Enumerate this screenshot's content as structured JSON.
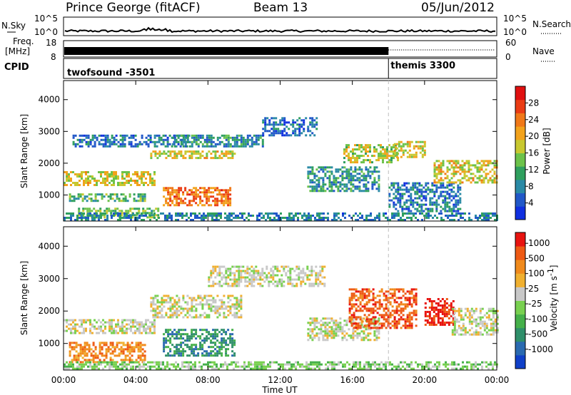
{
  "header": {
    "station": "Prince George (fitACF)",
    "beam": "Beam 13",
    "date": "05/Jun/2012"
  },
  "status_panels": {
    "nsky_label": "N.Sky",
    "nsky_ticks": [
      "10^5",
      "10^0"
    ],
    "nsearch_label": "N.Search",
    "nsearch_ticks": [
      "10^5",
      "10^0"
    ],
    "freq_label_line1": "Freq.",
    "freq_label_line2": "[MHz]",
    "freq_ticks": [
      "18",
      "8"
    ],
    "nave_label": "Nave",
    "nave_ticks": [
      "60",
      "0"
    ],
    "cpid_label": "CPID",
    "cpid_segments": [
      {
        "name": "twofsound",
        "id": "-3501",
        "start_hour": 0,
        "end_hour": 18
      },
      {
        "name": "themis",
        "id": "3300",
        "start_hour": 18,
        "end_hour": 24
      }
    ]
  },
  "x_axis": {
    "label": "Time UT",
    "ticks": [
      "00:00",
      "04:00",
      "08:00",
      "12:00",
      "16:00",
      "20:00",
      "00:00"
    ],
    "range_hours": [
      0,
      24
    ]
  },
  "chart_data": [
    {
      "type": "heatmap",
      "name": "power",
      "ylabel": "Slant Range [km]",
      "yticks": [
        "1000",
        "2000",
        "3000",
        "4000"
      ],
      "ylim": [
        180,
        4600
      ],
      "xlim_hours": [
        0,
        24
      ],
      "colorbar": {
        "label": "Power [dB]",
        "ticks": [
          "4",
          "8",
          "12",
          "16",
          "20",
          "24",
          "28"
        ],
        "range": [
          0,
          32
        ],
        "colors": [
          "#1030e0",
          "#2158c8",
          "#2a8aa6",
          "#2f9f5e",
          "#6cc24a",
          "#c8c830",
          "#f2a21c",
          "#f07818",
          "#ea3c14",
          "#e01010"
        ]
      },
      "regions": [
        {
          "t0": 0.0,
          "t1": 5.0,
          "r0": 1300,
          "r1": 1750,
          "level": 18
        },
        {
          "t0": 0.3,
          "t1": 4.5,
          "r0": 800,
          "r1": 1050,
          "level": 12
        },
        {
          "t0": 0.8,
          "t1": 5.2,
          "r0": 300,
          "r1": 600,
          "level": 14
        },
        {
          "t0": 0.5,
          "t1": 7.0,
          "r0": 2500,
          "r1": 2900,
          "level": 6
        },
        {
          "t0": 4.8,
          "t1": 9.5,
          "r0": 2150,
          "r1": 2400,
          "level": 18
        },
        {
          "t0": 5.5,
          "t1": 9.2,
          "r0": 650,
          "r1": 1250,
          "level": 25
        },
        {
          "t0": 6.0,
          "t1": 11.0,
          "r0": 2550,
          "r1": 2900,
          "level": 8
        },
        {
          "t0": 11.0,
          "t1": 14.0,
          "r0": 2900,
          "r1": 3450,
          "level": 5
        },
        {
          "t0": 13.5,
          "t1": 17.5,
          "r0": 1100,
          "r1": 1900,
          "level": 9
        },
        {
          "t0": 15.5,
          "t1": 18.5,
          "r0": 2000,
          "r1": 2600,
          "level": 17
        },
        {
          "t0": 18.0,
          "t1": 22.0,
          "r0": 500,
          "r1": 1400,
          "level": 6
        },
        {
          "t0": 18.3,
          "t1": 20.0,
          "r0": 2200,
          "r1": 2700,
          "level": 18
        },
        {
          "t0": 20.5,
          "t1": 24.0,
          "r0": 1400,
          "r1": 2100,
          "level": 19
        },
        {
          "t0": 0.0,
          "t1": 24.0,
          "r0": 200,
          "r1": 450,
          "level": 7
        }
      ]
    },
    {
      "type": "heatmap",
      "name": "velocity",
      "ylabel": "Slant Range [km]",
      "yticks": [
        "1000",
        "2000",
        "3000",
        "4000"
      ],
      "ylim": [
        180,
        4600
      ],
      "xlim_hours": [
        0,
        24
      ],
      "colorbar": {
        "label": "Velocity [m s-1]",
        "label_main": "Velocity",
        "label_unit": "[m s",
        "label_exp": "-1",
        "label_close": "]",
        "ticks": [
          "1000",
          "500",
          "100",
          "25",
          "-25",
          "-100",
          "-500",
          "-1000"
        ],
        "colors": [
          "#1040c8",
          "#2a6ab0",
          "#2f8f6a",
          "#45b04a",
          "#78d050",
          "#c8c8c8",
          "#f0b030",
          "#f08a1c",
          "#ee5a14",
          "#e81410"
        ]
      },
      "regions": [
        {
          "t0": 0.0,
          "t1": 5.0,
          "r0": 1300,
          "r1": 1750,
          "level": 5
        },
        {
          "t0": 0.3,
          "t1": 4.5,
          "r0": 400,
          "r1": 1050,
          "level": 7
        },
        {
          "t0": 4.8,
          "t1": 9.8,
          "r0": 1800,
          "r1": 2500,
          "level": 5
        },
        {
          "t0": 5.5,
          "t1": 9.5,
          "r0": 650,
          "r1": 1450,
          "level": 2
        },
        {
          "t0": 8.0,
          "t1": 14.5,
          "r0": 2800,
          "r1": 3400,
          "level": 5
        },
        {
          "t0": 13.5,
          "t1": 17.5,
          "r0": 1100,
          "r1": 1800,
          "level": 5
        },
        {
          "t0": 15.8,
          "t1": 19.5,
          "r0": 1500,
          "r1": 2700,
          "level": 8
        },
        {
          "t0": 20.0,
          "t1": 21.6,
          "r0": 1600,
          "r1": 2400,
          "level": 9
        },
        {
          "t0": 21.5,
          "t1": 24.0,
          "r0": 1300,
          "r1": 2100,
          "level": 5
        },
        {
          "t0": 0.0,
          "t1": 24.0,
          "r0": 200,
          "r1": 450,
          "level": 4
        }
      ]
    }
  ]
}
